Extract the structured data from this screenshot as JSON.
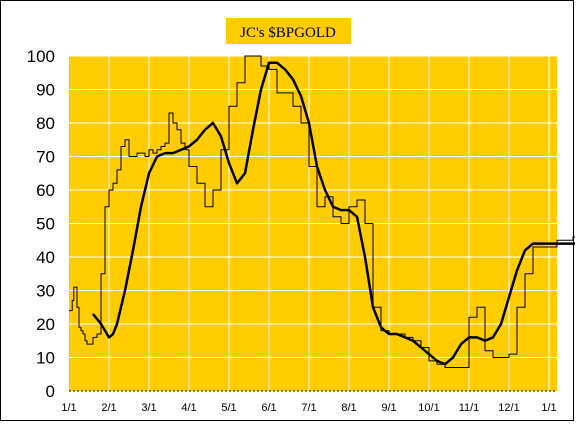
{
  "chart_data": {
    "type": "line",
    "title": "JC's $BPGOLD",
    "xlabel": "",
    "ylabel": "",
    "ylim": [
      0,
      100
    ],
    "yticks": [
      "0",
      "10",
      "20",
      "30",
      "40",
      "50",
      "60",
      "70",
      "80",
      "90",
      "100"
    ],
    "xticks": [
      "1/1",
      "2/1",
      "3/1",
      "4/1",
      "5/1",
      "6/1",
      "7/1",
      "8/1",
      "9/1",
      "10/1",
      "11/1",
      "12/1",
      "1/1"
    ],
    "grid": true,
    "colors": {
      "plot_bg": "#FFCC00",
      "grid": "#FFFFFF",
      "line": "#000000",
      "title_bg": "#FFCC00"
    },
    "series": [
      {
        "style": "thin-step",
        "x": [
          0,
          0.05,
          0.08,
          0.12,
          0.15,
          0.2,
          0.25,
          0.3,
          0.35,
          0.4,
          0.45,
          0.5,
          0.6,
          0.7,
          0.8,
          0.9,
          1.0,
          1.1,
          1.2,
          1.3,
          1.4,
          1.5,
          1.6,
          1.7,
          1.8,
          1.9,
          2.0,
          2.1,
          2.2,
          2.3,
          2.4,
          2.5,
          2.6,
          2.7,
          2.8,
          2.9,
          3.0,
          3.2,
          3.4,
          3.6,
          3.8,
          4.0,
          4.2,
          4.4,
          4.6,
          4.8,
          5.0,
          5.2,
          5.4,
          5.6,
          5.8,
          6.0,
          6.2,
          6.4,
          6.6,
          6.8,
          7.0,
          7.2,
          7.4,
          7.6,
          7.8,
          8.0,
          8.2,
          8.4,
          8.6,
          8.8,
          9.0,
          9.2,
          9.4,
          9.6,
          9.8,
          10.0,
          10.2,
          10.4,
          10.6,
          10.8,
          11.0,
          11.2,
          11.4,
          11.6,
          11.8,
          12.0,
          12.2,
          12.4,
          12.6,
          12.8
        ],
        "y": [
          24,
          24,
          27,
          31,
          31,
          25,
          19,
          18,
          17,
          15,
          14,
          14,
          16,
          17,
          35,
          55,
          60,
          62,
          66,
          73,
          75,
          70,
          70,
          71,
          71,
          70,
          72,
          71,
          72,
          73,
          74,
          83,
          80,
          78,
          74,
          72,
          67,
          62,
          55,
          60,
          72,
          85,
          92,
          100,
          100,
          97,
          96,
          89,
          89,
          85,
          80,
          67,
          55,
          58,
          52,
          50,
          55,
          57,
          50,
          25,
          18,
          17,
          17,
          16,
          15,
          13,
          9,
          8,
          7,
          7,
          7,
          22,
          25,
          12,
          10,
          10,
          11,
          25,
          35,
          43,
          43,
          43,
          45,
          45,
          46,
          47
        ]
      },
      {
        "style": "thick-smooth",
        "x": [
          0.6,
          0.8,
          1.0,
          1.1,
          1.2,
          1.4,
          1.6,
          1.8,
          2.0,
          2.2,
          2.4,
          2.6,
          2.8,
          3.0,
          3.2,
          3.4,
          3.6,
          3.8,
          4.0,
          4.2,
          4.4,
          4.6,
          4.8,
          5.0,
          5.2,
          5.4,
          5.6,
          5.8,
          6.0,
          6.2,
          6.4,
          6.6,
          6.8,
          7.0,
          7.2,
          7.4,
          7.6,
          7.8,
          8.0,
          8.2,
          8.4,
          8.6,
          8.8,
          9.0,
          9.2,
          9.4,
          9.6,
          9.8,
          10.0,
          10.2,
          10.4,
          10.6,
          10.8,
          11.0,
          11.2,
          11.4,
          11.6,
          11.8,
          12.0,
          12.2,
          12.4,
          12.6,
          12.8
        ],
        "y": [
          23,
          20,
          16,
          17,
          20,
          30,
          42,
          55,
          65,
          70,
          71,
          71,
          72,
          73,
          75,
          78,
          80,
          76,
          68,
          62,
          65,
          78,
          90,
          98,
          98,
          96,
          93,
          88,
          80,
          67,
          60,
          55,
          54,
          54,
          52,
          40,
          25,
          19,
          17,
          17,
          16,
          15,
          13,
          11,
          9,
          8,
          10,
          14,
          16,
          16,
          15,
          16,
          20,
          28,
          36,
          42,
          44,
          44,
          44,
          44,
          44,
          44,
          44
        ]
      }
    ]
  }
}
